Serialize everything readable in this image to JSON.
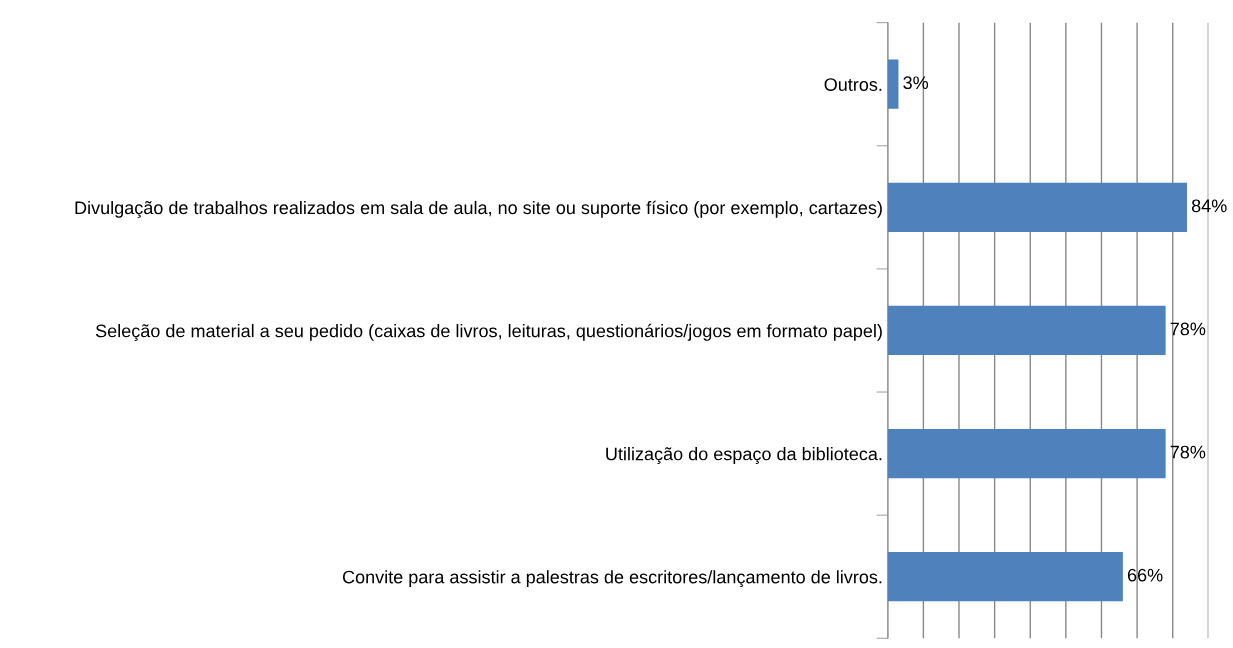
{
  "chart_data": {
    "type": "bar",
    "orientation": "horizontal",
    "categories": [
      "Outros.",
      "Divulgação de trabalhos realizados em sala de aula, no site ou suporte físico (por exemplo, cartazes)",
      "Seleção de material a seu pedido (caixas de livros, leituras, questionários/jogos em formato papel)",
      "Utilização do espaço da biblioteca.",
      "Convite para assistir a palestras de escritores/lançamento de livros."
    ],
    "values": [
      3,
      84,
      78,
      78,
      66
    ],
    "value_labels": [
      "3%",
      "84%",
      "78%",
      "78%",
      "66%"
    ],
    "color": "#4f81bd",
    "xlim": [
      0,
      90
    ],
    "xticks": [
      {
        "value": 0,
        "label": null
      },
      {
        "value": 10,
        "label": null
      },
      {
        "value": 20,
        "label": null
      },
      {
        "value": 30,
        "label": null
      },
      {
        "value": 40,
        "label": null
      },
      {
        "value": 50,
        "label": null
      },
      {
        "value": 60,
        "label": null
      },
      {
        "value": 70,
        "label": null
      },
      {
        "value": 80,
        "label": null
      },
      {
        "value": 90,
        "label": null
      }
    ],
    "grid": "x",
    "tick_labels": "y"
  }
}
